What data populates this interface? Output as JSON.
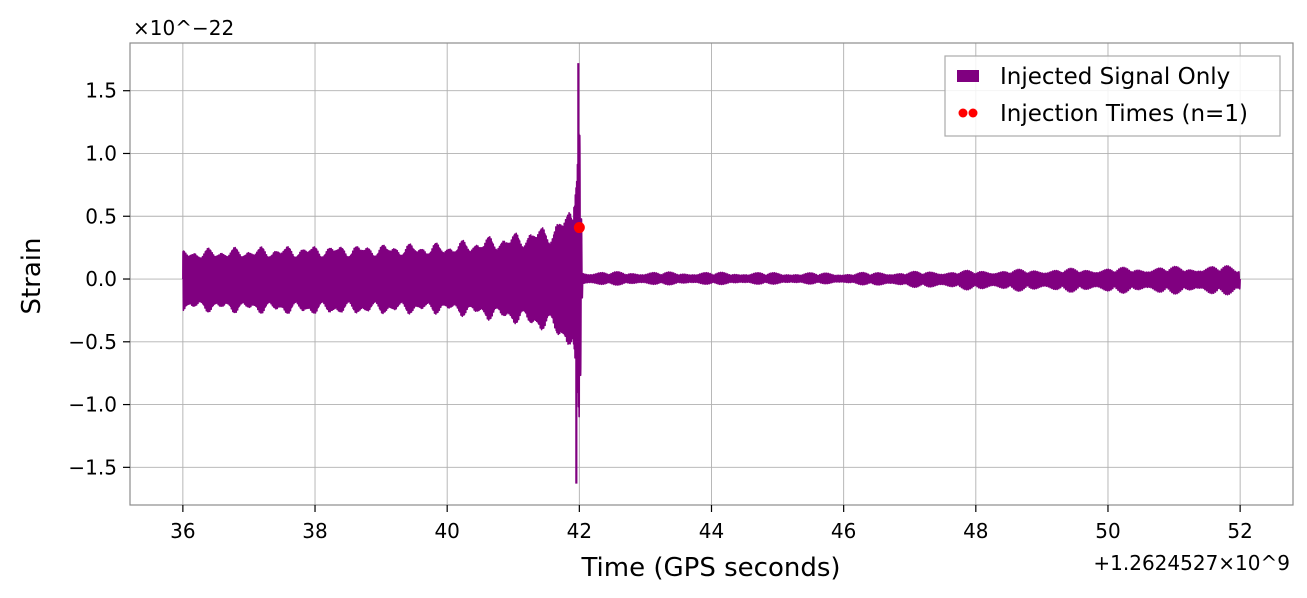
{
  "chart_data": {
    "type": "line",
    "title": "",
    "xlabel": "Time (GPS seconds)",
    "ylabel": "Strain",
    "x_offset_label": "+1.2624527×10^9",
    "y_scale_label": "×10^−22",
    "xlim": [
      35.2,
      52.8
    ],
    "ylim": [
      -1.8,
      1.88
    ],
    "x_ticks": [
      36,
      38,
      40,
      42,
      44,
      46,
      48,
      50,
      52
    ],
    "x_tick_labels": [
      "36",
      "38",
      "40",
      "42",
      "44",
      "46",
      "48",
      "50",
      "52"
    ],
    "y_ticks": [
      -1.5,
      -1.0,
      -0.5,
      0.0,
      0.5,
      1.0,
      1.5
    ],
    "y_tick_labels": [
      "−1.5",
      "−1.0",
      "−0.5",
      "0.0",
      "0.5",
      "1.0",
      "1.5"
    ],
    "grid": true,
    "legend_position": "upper right",
    "series": [
      {
        "name": "Injected Signal Only",
        "kind": "line",
        "color": "#800080",
        "x_start": 36,
        "x_end": 52,
        "merger_time": 42,
        "max_strain": 1.72,
        "min_strain": -1.63,
        "envelope": [
          {
            "x": 36.0,
            "upper": 0.24,
            "lower": -0.26
          },
          {
            "x": 38.0,
            "upper": 0.27,
            "lower": -0.29
          },
          {
            "x": 40.0,
            "upper": 0.29,
            "lower": -0.28
          },
          {
            "x": 41.0,
            "upper": 0.37,
            "lower": -0.36
          },
          {
            "x": 41.6,
            "upper": 0.45,
            "lower": -0.45
          },
          {
            "x": 41.9,
            "upper": 0.6,
            "lower": -0.6
          },
          {
            "x": 42.0,
            "upper": 1.72,
            "lower": -1.63
          },
          {
            "x": 42.05,
            "upper": 0.06,
            "lower": -0.05
          },
          {
            "x": 46.0,
            "upper": 0.05,
            "lower": -0.04
          },
          {
            "x": 48.0,
            "upper": 0.07,
            "lower": -0.09
          },
          {
            "x": 51.8,
            "upper": 0.11,
            "lower": -0.13
          },
          {
            "x": 52.0,
            "upper": 0.09,
            "lower": -0.12
          }
        ]
      },
      {
        "name": "Injection Times (n=1)",
        "kind": "scatter",
        "color": "#ff0000",
        "points": [
          {
            "x": 42.0,
            "y": 0.41
          }
        ]
      }
    ]
  }
}
